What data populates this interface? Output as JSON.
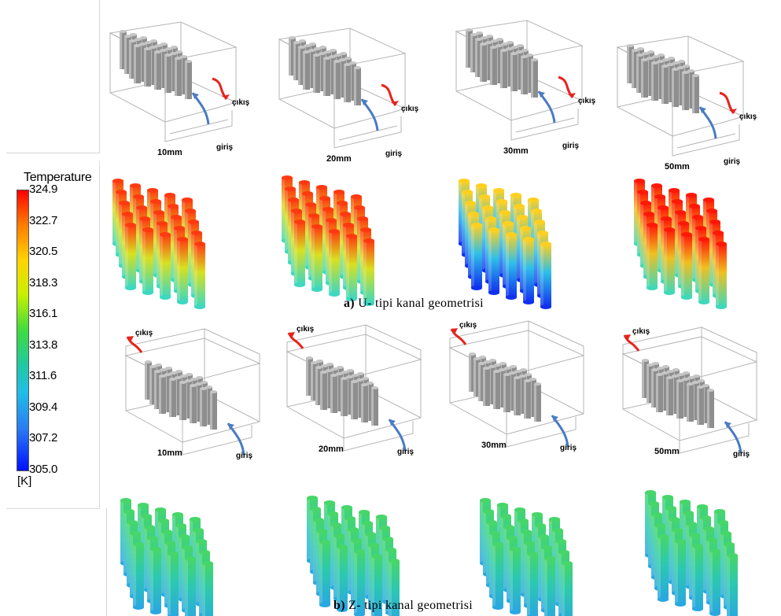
{
  "legend": {
    "title": "Temperature",
    "ticks": [
      "324.9",
      "322.7",
      "320.5",
      "318.3",
      "316.1",
      "313.8",
      "311.6",
      "309.4",
      "307.2",
      "305.0"
    ],
    "unit": "[K]",
    "colors": [
      "#ff0000",
      "#ff7a00",
      "#ffd400",
      "#c8f000",
      "#3fdc3f",
      "#21c9a0",
      "#20bfe8",
      "#2a7cf2",
      "#0010ff"
    ]
  },
  "section_u": {
    "caption_letter": "a)",
    "caption_text": "U- tipi kanal geometrisi",
    "inlet_label": "giriş",
    "outlet_label": "çıkış",
    "sizes": [
      "10mm",
      "20mm",
      "30mm",
      "50mm"
    ],
    "heat_profiles": [
      "hot",
      "hot",
      "mixed",
      "very-hot"
    ]
  },
  "section_z": {
    "caption_letter": "b)",
    "caption_text": "Z- tipi kanal geometrisi",
    "inlet_label": "giriş",
    "outlet_label": "çıkış",
    "sizes": [
      "10mm",
      "20mm",
      "30mm",
      "50mm"
    ],
    "heat_profiles": [
      "cool",
      "cool",
      "cool",
      "cool"
    ]
  },
  "colors": {
    "outlet_arrow": "#e8231c",
    "inlet_arrow": "#4a7bc4",
    "cylinder_grey": "#8e8e8e",
    "wireframe": "#b5b5b5"
  }
}
